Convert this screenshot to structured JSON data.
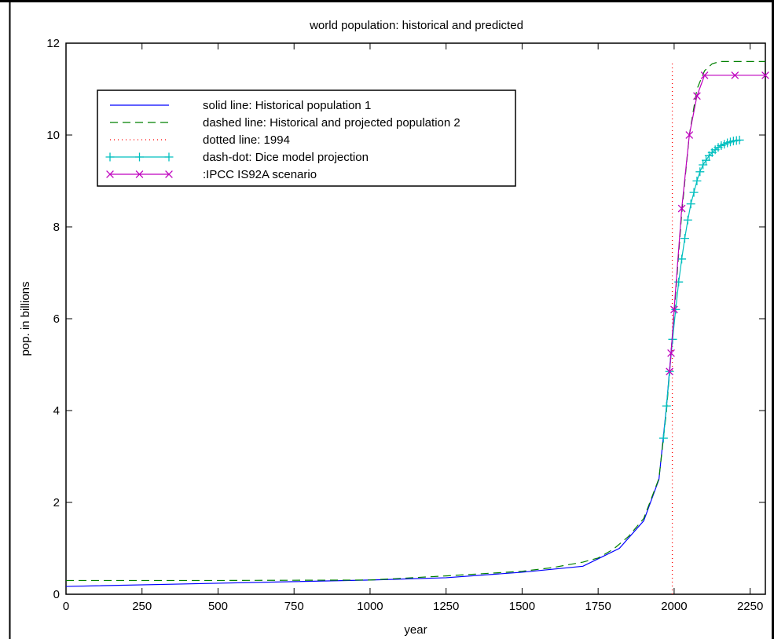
{
  "chart_data": {
    "type": "line",
    "title": "world population:  historical and predicted",
    "xlabel": "year",
    "ylabel": "pop. in billions",
    "xlim": [
      0,
      2300
    ],
    "ylim": [
      0,
      12
    ],
    "grid": false,
    "legend_position": "top-left",
    "x_ticks": [
      0,
      250,
      500,
      750,
      1000,
      1250,
      1500,
      1750,
      2000,
      2250
    ],
    "y_ticks": [
      0,
      2,
      4,
      6,
      8,
      10,
      12
    ],
    "series": [
      {
        "name": "solid line:  Historical population 1",
        "color": "#0000ff",
        "style": "solid",
        "marker": "none",
        "x": [
          0,
          1000,
          1250,
          1500,
          1700,
          1820,
          1900,
          1950,
          1975,
          1994
        ],
        "y": [
          0.17,
          0.31,
          0.36,
          0.48,
          0.61,
          1.0,
          1.6,
          2.5,
          4.1,
          5.6
        ]
      },
      {
        "name": "dashed line:  Historical and projected population 2",
        "color": "#008000",
        "style": "dashed",
        "marker": "none",
        "x": [
          0,
          500,
          1000,
          1250,
          1500,
          1600,
          1700,
          1750,
          1800,
          1850,
          1900,
          1950,
          1975,
          2000,
          2025,
          2050,
          2075,
          2100,
          2125,
          2150,
          2200,
          2300
        ],
        "y": [
          0.3,
          0.3,
          0.31,
          0.4,
          0.5,
          0.58,
          0.7,
          0.79,
          0.98,
          1.26,
          1.65,
          2.52,
          4.0,
          6.1,
          8.3,
          10.0,
          11.0,
          11.4,
          11.55,
          11.6,
          11.6,
          11.6
        ]
      },
      {
        "name": "dotted line:  1994",
        "color": "#ff0000",
        "style": "dotted",
        "marker": "none",
        "x": [
          1994,
          1994
        ],
        "y": [
          0,
          11.6
        ]
      },
      {
        "name": "dash-dot:  Dice model projection",
        "color": "#00bfbf",
        "style": "solid",
        "marker": "plus",
        "x": [
          1965,
          1975,
          1985,
          1995,
          2005,
          2015,
          2025,
          2035,
          2045,
          2055,
          2065,
          2075,
          2085,
          2095,
          2105,
          2115,
          2125,
          2135,
          2145,
          2155,
          2165,
          2175,
          2185,
          2195,
          2205,
          2215
        ],
        "y": [
          3.4,
          4.1,
          4.85,
          5.55,
          6.2,
          6.8,
          7.3,
          7.75,
          8.15,
          8.5,
          8.75,
          9.0,
          9.2,
          9.35,
          9.45,
          9.55,
          9.62,
          9.68,
          9.73,
          9.77,
          9.8,
          9.83,
          9.85,
          9.87,
          9.88,
          9.89
        ]
      },
      {
        "name": ":IPCC IS92A scenario",
        "color": "#bf00bf",
        "style": "solid",
        "marker": "x",
        "x": [
          1985,
          1990,
          2000,
          2025,
          2050,
          2075,
          2100,
          2200,
          2300
        ],
        "y": [
          4.85,
          5.25,
          6.2,
          8.4,
          10.0,
          10.85,
          11.3,
          11.3,
          11.3
        ]
      }
    ]
  }
}
